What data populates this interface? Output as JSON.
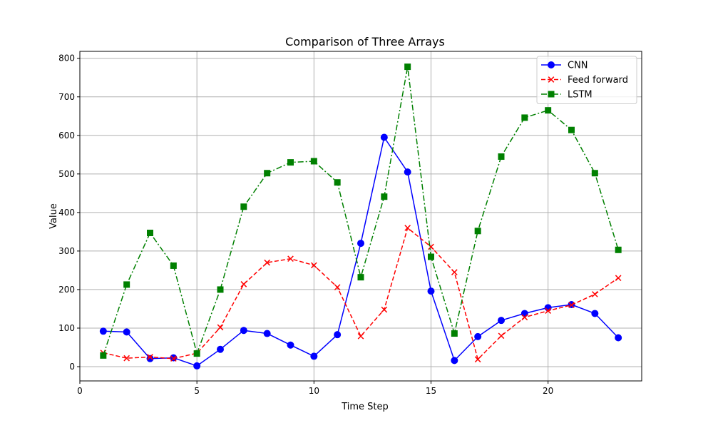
{
  "chart_data": {
    "type": "line",
    "title": "Comparison of Three Arrays",
    "xlabel": "Time Step",
    "ylabel": "Value",
    "xlim": [
      0,
      24
    ],
    "ylim": [
      -37,
      818
    ],
    "xticks": [
      0,
      5,
      10,
      15,
      20
    ],
    "yticks": [
      0,
      100,
      200,
      300,
      400,
      500,
      600,
      700,
      800
    ],
    "grid": true,
    "legend_position": "upper right",
    "x": [
      1,
      2,
      3,
      4,
      5,
      6,
      7,
      8,
      9,
      10,
      11,
      12,
      13,
      14,
      15,
      16,
      17,
      18,
      19,
      20,
      21,
      22,
      23
    ],
    "series": [
      {
        "name": "CNN",
        "color": "#0000ff",
        "linestyle": "solid",
        "marker": "circle",
        "values": [
          92,
          90,
          21,
          23,
          2,
          45,
          94,
          86,
          56,
          27,
          83,
          320,
          595,
          505,
          196,
          16,
          78,
          120,
          138,
          153,
          161,
          138,
          75
        ]
      },
      {
        "name": "Feed forward",
        "color": "#ff0000",
        "linestyle": "dashed",
        "marker": "x",
        "values": [
          36,
          22,
          25,
          21,
          35,
          102,
          214,
          270,
          280,
          263,
          206,
          79,
          148,
          360,
          311,
          245,
          19,
          80,
          128,
          145,
          160,
          188,
          230
        ]
      },
      {
        "name": "LSTM",
        "color": "#008000",
        "linestyle": "dashdot",
        "marker": "square",
        "values": [
          29,
          213,
          347,
          262,
          34,
          200,
          415,
          502,
          530,
          533,
          478,
          232,
          441,
          778,
          285,
          86,
          352,
          545,
          646,
          665,
          614,
          502,
          303
        ]
      }
    ]
  }
}
